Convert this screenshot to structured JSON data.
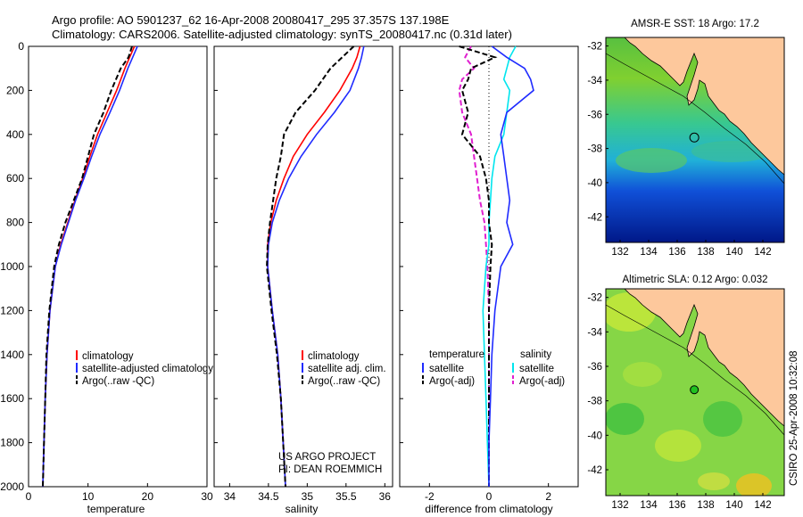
{
  "header": {
    "title_line1": "Argo profile: AO 5901237_62 16-Apr-2008 20080417_295 37.357S 137.198E",
    "title_line2": "Climatology: CARS2006. Satellite-adjusted climatology: synTS_20080417.nc (0.31d later)"
  },
  "side_label": "CSIRO 25-Apr-2008 10:32:08",
  "credit": {
    "line1": "US ARGO PROJECT",
    "line2": "PI: DEAN ROEMMICH"
  },
  "colors": {
    "climatology": "#ff0000",
    "satellite": "#1f2bff",
    "argo": "#000000",
    "salinity_satellite": "#00e5ee",
    "salinity_argo": "#e020d0",
    "land": "#fdc89c"
  },
  "chart_data": [
    {
      "type": "line",
      "xlabel": "temperature",
      "ylim": [
        2000,
        0
      ],
      "xlim": [
        0,
        30
      ],
      "xticks": [
        "0",
        "10",
        "20",
        "30"
      ],
      "yticks": [
        "0",
        "200",
        "400",
        "600",
        "800",
        "1000",
        "1200",
        "1400",
        "1600",
        "1800",
        "2000"
      ],
      "legend": [
        "climatology",
        "satellite-adjusted climatology",
        "Argo(..raw -QC)"
      ],
      "depth": [
        0,
        50,
        100,
        200,
        300,
        400,
        500,
        600,
        700,
        800,
        900,
        1000,
        1200,
        1400,
        1600,
        1800,
        2000
      ],
      "series": [
        {
          "name": "climatology",
          "values": [
            17.8,
            17.0,
            16.2,
            14.8,
            13.2,
            11.6,
            10.3,
            9.1,
            7.8,
            6.6,
            5.4,
            4.5,
            3.6,
            3.1,
            2.8,
            2.6,
            2.4
          ]
        },
        {
          "name": "satellite-adjusted climatology",
          "values": [
            18.3,
            17.5,
            16.7,
            15.3,
            13.7,
            12.0,
            10.6,
            9.3,
            7.9,
            6.7,
            5.5,
            4.5,
            3.6,
            3.1,
            2.8,
            2.6,
            2.4
          ]
        },
        {
          "name": "Argo(..raw -QC)",
          "values": [
            17.4,
            16.8,
            15.5,
            13.9,
            12.6,
            11.0,
            10.0,
            9.0,
            7.6,
            6.2,
            5.1,
            4.3,
            3.5,
            3.0,
            2.8,
            2.6,
            2.4
          ]
        }
      ]
    },
    {
      "type": "line",
      "xlabel": "salinity",
      "ylim": [
        2000,
        0
      ],
      "xlim": [
        33.8,
        36.1
      ],
      "xticks": [
        "34",
        "34.5",
        "35",
        "35.5",
        "36"
      ],
      "legend": [
        "climatology",
        "satellite adj. clim.",
        "Argo(..raw -QC)"
      ],
      "depth": [
        0,
        50,
        100,
        200,
        300,
        400,
        500,
        600,
        700,
        800,
        900,
        1000,
        1200,
        1400,
        1600,
        1800,
        2000
      ],
      "series": [
        {
          "name": "climatology",
          "values": [
            35.68,
            35.64,
            35.58,
            35.42,
            35.22,
            35.0,
            34.82,
            34.7,
            34.6,
            34.53,
            34.49,
            34.49,
            34.55,
            34.62,
            34.66,
            34.69,
            34.72
          ]
        },
        {
          "name": "satellite adj. clim.",
          "values": [
            35.73,
            35.7,
            35.66,
            35.55,
            35.35,
            35.12,
            34.92,
            34.76,
            34.64,
            34.55,
            34.5,
            34.49,
            34.55,
            34.62,
            34.66,
            34.69,
            34.72
          ]
        },
        {
          "name": "Argo(..raw -QC)",
          "values": [
            35.6,
            35.45,
            35.3,
            35.1,
            34.85,
            34.7,
            34.66,
            34.6,
            34.56,
            34.52,
            34.49,
            34.48,
            34.54,
            34.61,
            34.66,
            34.69,
            34.72
          ]
        }
      ]
    },
    {
      "type": "line",
      "xlabel": "difference from climatology",
      "ylim": [
        2000,
        0
      ],
      "xlim": [
        -3,
        3
      ],
      "xticks": [
        "-2",
        "0",
        "2"
      ],
      "legend_titles": [
        "temperature",
        "salinity"
      ],
      "legend": [
        "satellite",
        "Argo(-adj)",
        "satellite",
        "Argo(-adj)"
      ],
      "depth": [
        0,
        50,
        100,
        150,
        200,
        300,
        400,
        500,
        600,
        700,
        800,
        900,
        1000,
        1200,
        1400,
        1600,
        1800,
        2000
      ],
      "series": [
        {
          "name": "temperature satellite",
          "values": [
            0.1,
            0.6,
            1.2,
            1.4,
            1.5,
            0.6,
            0.4,
            0.5,
            0.6,
            0.7,
            0.6,
            0.8,
            0.4,
            0.2,
            0.1,
            0.05,
            0.0,
            0.0
          ]
        },
        {
          "name": "temperature Argo(-adj)",
          "values": [
            -1.0,
            0.2,
            -0.6,
            -0.7,
            -0.9,
            -0.7,
            -0.9,
            -0.3,
            -0.1,
            0.0,
            0.0,
            0.1,
            0.05,
            0.0,
            0.0,
            0.0,
            0.0,
            0.0
          ]
        },
        {
          "name": "salinity satellite",
          "values": [
            0.9,
            0.7,
            0.6,
            0.5,
            0.7,
            0.6,
            0.5,
            0.2,
            0.1,
            0.05,
            0.0,
            0.0,
            -0.1,
            -0.2,
            -0.15,
            -0.1,
            -0.05,
            0.0
          ]
        },
        {
          "name": "salinity Argo(-adj)",
          "values": [
            -0.6,
            -0.8,
            -0.5,
            -0.9,
            -1.0,
            -0.9,
            -0.6,
            -0.5,
            -0.4,
            -0.3,
            -0.15,
            -0.1,
            -0.05,
            0.0,
            0.0,
            0.0,
            0.0,
            0.0
          ]
        }
      ]
    },
    {
      "type": "heatmap",
      "title": "AMSR-E SST: 18 Argo: 17.2",
      "xticks": [
        "132",
        "134",
        "136",
        "138",
        "140",
        "142"
      ],
      "yticks": [
        "-32",
        "-34",
        "-36",
        "-38",
        "-40",
        "-42"
      ],
      "xlim": [
        131,
        143.5
      ],
      "ylim": [
        -43.5,
        -31.5
      ],
      "marker": {
        "lon": 137.198,
        "lat": -37.357
      }
    },
    {
      "type": "heatmap",
      "title": "Altimetric SLA: 0.12 Argo: 0.032",
      "xticks": [
        "132",
        "134",
        "136",
        "138",
        "140",
        "142"
      ],
      "yticks": [
        "-32",
        "-34",
        "-36",
        "-38",
        "-40",
        "-42"
      ],
      "xlim": [
        131,
        143.5
      ],
      "ylim": [
        -43.5,
        -31.5
      ],
      "marker": {
        "lon": 137.198,
        "lat": -37.357
      }
    }
  ]
}
